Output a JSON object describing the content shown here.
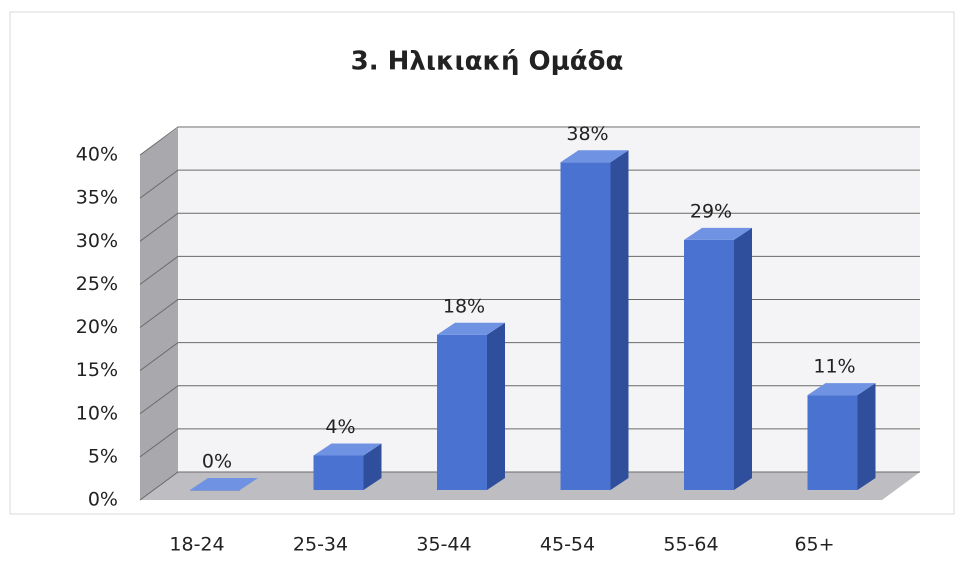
{
  "chart_data": {
    "type": "bar",
    "title": "3. Ηλικιακή Ομάδα",
    "categories": [
      "18-24",
      "25-34",
      "35-44",
      "45-54",
      "55-64",
      "65+"
    ],
    "values": [
      0,
      4,
      18,
      38,
      29,
      11
    ],
    "value_labels": [
      "0%",
      "4%",
      "18%",
      "38%",
      "29%",
      "11%"
    ],
    "color": "#4a72d0",
    "ylim": [
      0,
      40
    ],
    "yticks": [
      {
        "value": 0,
        "label": "0%"
      },
      {
        "value": 5,
        "label": "5%"
      },
      {
        "value": 10,
        "label": "10%"
      },
      {
        "value": 15,
        "label": "15%"
      },
      {
        "value": 20,
        "label": "20%"
      },
      {
        "value": 25,
        "label": "25%"
      },
      {
        "value": 30,
        "label": "30%"
      },
      {
        "value": 35,
        "label": "35%"
      },
      {
        "value": 40,
        "label": "40%"
      }
    ],
    "grid": true
  }
}
